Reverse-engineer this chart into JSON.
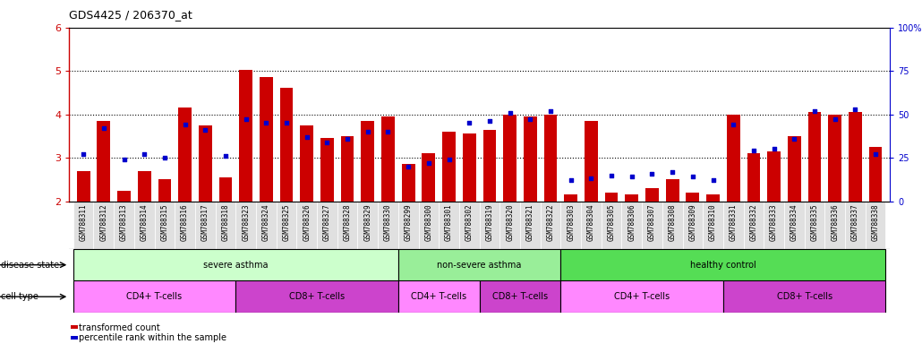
{
  "title": "GDS4425 / 206370_at",
  "samples": [
    "GSM788311",
    "GSM788312",
    "GSM788313",
    "GSM788314",
    "GSM788315",
    "GSM788316",
    "GSM788317",
    "GSM788318",
    "GSM788323",
    "GSM788324",
    "GSM788325",
    "GSM788326",
    "GSM788327",
    "GSM788328",
    "GSM788329",
    "GSM788330",
    "GSM788299",
    "GSM788300",
    "GSM788301",
    "GSM788302",
    "GSM788319",
    "GSM788320",
    "GSM788321",
    "GSM788322",
    "GSM788303",
    "GSM788304",
    "GSM788305",
    "GSM788306",
    "GSM788307",
    "GSM788308",
    "GSM788309",
    "GSM788310",
    "GSM788331",
    "GSM788332",
    "GSM788333",
    "GSM788334",
    "GSM788335",
    "GSM788336",
    "GSM788337",
    "GSM788338"
  ],
  "transformed_count": [
    2.7,
    3.85,
    2.25,
    2.7,
    2.5,
    4.15,
    3.75,
    2.55,
    5.02,
    4.85,
    4.62,
    3.75,
    3.45,
    3.5,
    3.85,
    3.95,
    2.85,
    3.1,
    3.6,
    3.55,
    3.65,
    4.0,
    3.95,
    4.0,
    2.15,
    3.85,
    2.2,
    2.15,
    2.3,
    2.5,
    2.2,
    2.15,
    4.0,
    3.1,
    3.15,
    3.5,
    4.05,
    4.0,
    4.05,
    3.25
  ],
  "percentile_rank": [
    27,
    42,
    24,
    27,
    25,
    44,
    41,
    26,
    47,
    45,
    45,
    37,
    34,
    36,
    40,
    40,
    20,
    22,
    24,
    45,
    46,
    51,
    47,
    52,
    12,
    13,
    15,
    14,
    16,
    17,
    14,
    12,
    44,
    29,
    30,
    36,
    52,
    47,
    53,
    27
  ],
  "bar_color": "#cc0000",
  "dot_color": "#0000cc",
  "ylim_left": [
    2.0,
    6.0
  ],
  "ylim_right": [
    0,
    100
  ],
  "yticks_left": [
    2,
    3,
    4,
    5,
    6
  ],
  "yticks_right": [
    0,
    25,
    50,
    75,
    100
  ],
  "disease_state_groups": [
    {
      "label": "severe asthma",
      "start": 0,
      "end": 15,
      "color": "#ccffcc"
    },
    {
      "label": "non-severe asthma",
      "start": 16,
      "end": 23,
      "color": "#99ee99"
    },
    {
      "label": "healthy control",
      "start": 24,
      "end": 39,
      "color": "#44cc44"
    }
  ],
  "cell_type_groups": [
    {
      "label": "CD4+ T-cells",
      "start": 0,
      "end": 7,
      "color": "#ff88ff"
    },
    {
      "label": "CD8+ T-cells",
      "start": 8,
      "end": 15,
      "color": "#cc44cc"
    },
    {
      "label": "CD4+ T-cells",
      "start": 16,
      "end": 19,
      "color": "#ff88ff"
    },
    {
      "label": "CD8+ T-cells",
      "start": 20,
      "end": 23,
      "color": "#cc44cc"
    },
    {
      "label": "CD4+ T-cells",
      "start": 24,
      "end": 31,
      "color": "#ff88ff"
    },
    {
      "label": "CD8+ T-cells",
      "start": 32,
      "end": 39,
      "color": "#cc44cc"
    }
  ],
  "legend_bar_label": "transformed count",
  "legend_dot_label": "percentile rank within the sample",
  "bg_color": "#ffffff",
  "left_axis_color": "#cc0000",
  "right_axis_color": "#0000cc"
}
